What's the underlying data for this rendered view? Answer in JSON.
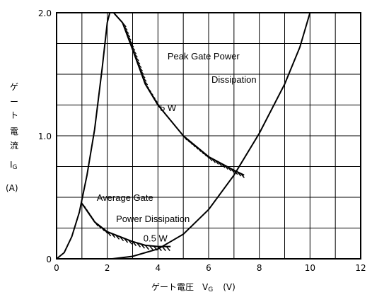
{
  "chart_data": {
    "type": "line",
    "title": "",
    "xlabel": "ゲート電圧　V",
    "xlabel_sub": "G",
    "xlabel_unit": "(V)",
    "ylabel_chars": [
      "ゲ",
      "ー",
      "ト",
      "電",
      "流"
    ],
    "ylabel_symbol": "I",
    "ylabel_symbol_sub": "G",
    "ylabel_unit": "(A)",
    "xlim": [
      0,
      12
    ],
    "ylim": [
      0,
      2.0
    ],
    "x_ticks": [
      "0",
      "2",
      "4",
      "6",
      "8",
      "10",
      "12"
    ],
    "y_ticks": [
      "0",
      "1.0",
      "2.0"
    ],
    "grid": true,
    "series": [
      {
        "x": [
          0,
          0.3,
          0.6,
          0.9,
          1.2,
          1.5,
          1.8,
          2.0,
          2.1
        ],
        "y": [
          0,
          0.05,
          0.18,
          0.38,
          0.68,
          1.05,
          1.55,
          1.92,
          2.0
        ]
      },
      {
        "x": [
          2.2,
          3.0,
          4.0,
          5.0,
          6.0,
          7.0,
          8.0,
          9.0,
          9.6,
          10.0
        ],
        "y": [
          0,
          0.02,
          0.08,
          0.2,
          0.4,
          0.68,
          1.02,
          1.42,
          1.72,
          2.0
        ]
      }
    ],
    "curves": [
      {
        "x": [
          2.25,
          2.6,
          3.0,
          3.5,
          4.0,
          5.0,
          6.0,
          7.0,
          7.4
        ],
        "y": [
          2.0,
          1.92,
          1.7,
          1.42,
          1.25,
          1.0,
          0.83,
          0.72,
          0.68
        ]
      },
      {
        "x": [
          1.0,
          1.5,
          2.0,
          2.5,
          3.0,
          3.5,
          4.0,
          4.5
        ],
        "y": [
          0.45,
          0.3,
          0.22,
          0.18,
          0.14,
          0.11,
          0.1,
          0.1
        ]
      }
    ],
    "annotations": [
      {
        "text": "Peak Gate Power",
        "x": 5.8,
        "y": 1.62
      },
      {
        "text": "Dissipation",
        "x": 7.0,
        "y": 1.43
      },
      {
        "text": "5 W",
        "x": 4.4,
        "y": 1.2
      },
      {
        "text": "Average Gate",
        "x": 2.7,
        "y": 0.47
      },
      {
        "text": "Power Dissipation",
        "x": 3.8,
        "y": 0.3
      },
      {
        "text": "0.5 W",
        "x": 3.9,
        "y": 0.14
      }
    ]
  }
}
